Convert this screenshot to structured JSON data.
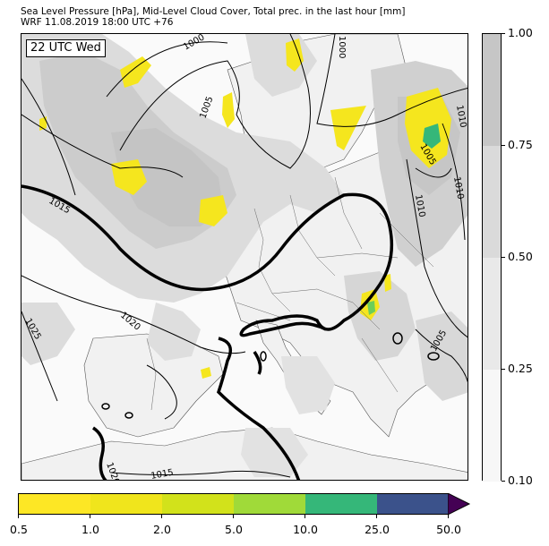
{
  "header": {
    "title_line1": "Sea Level Pressure [hPa], Mid-Level Cloud Cover, Total prec. in the last hour [mm]",
    "title_line2": "WRF 11.08.2019 18:00 UTC +76"
  },
  "map": {
    "time_label": "22 UTC Wed",
    "isobar_labels": [
      "1000",
      "1005",
      "1010",
      "1015",
      "1020",
      "1025",
      "1000",
      "1005",
      "1010",
      "1010",
      "1005",
      "1015",
      "1020"
    ],
    "colors": {
      "land": "#f0f0f0",
      "sea": "#ffffff",
      "cloud_light": "#e0e0e0",
      "cloud_mid": "#c8c8c8",
      "precip_yellow": "#f5e61e",
      "precip_green": "#35b779"
    }
  },
  "cloud_colorbar": {
    "labels": [
      "0.10",
      "0.25",
      "0.50",
      "0.75",
      "1.00"
    ],
    "colors": [
      "#f7f7f7",
      "#e9e9e9",
      "#dadada",
      "#c6c6c6"
    ]
  },
  "precip_colorbar": {
    "labels": [
      "0.5",
      "1.0",
      "2.0",
      "5.0",
      "10.0",
      "25.0",
      "50.0"
    ],
    "colors": [
      "#fde725",
      "#f0e51c",
      "#d2e21b",
      "#a0da39",
      "#35b779",
      "#31688e",
      "#3b528b"
    ],
    "extend_color": "#440154"
  }
}
